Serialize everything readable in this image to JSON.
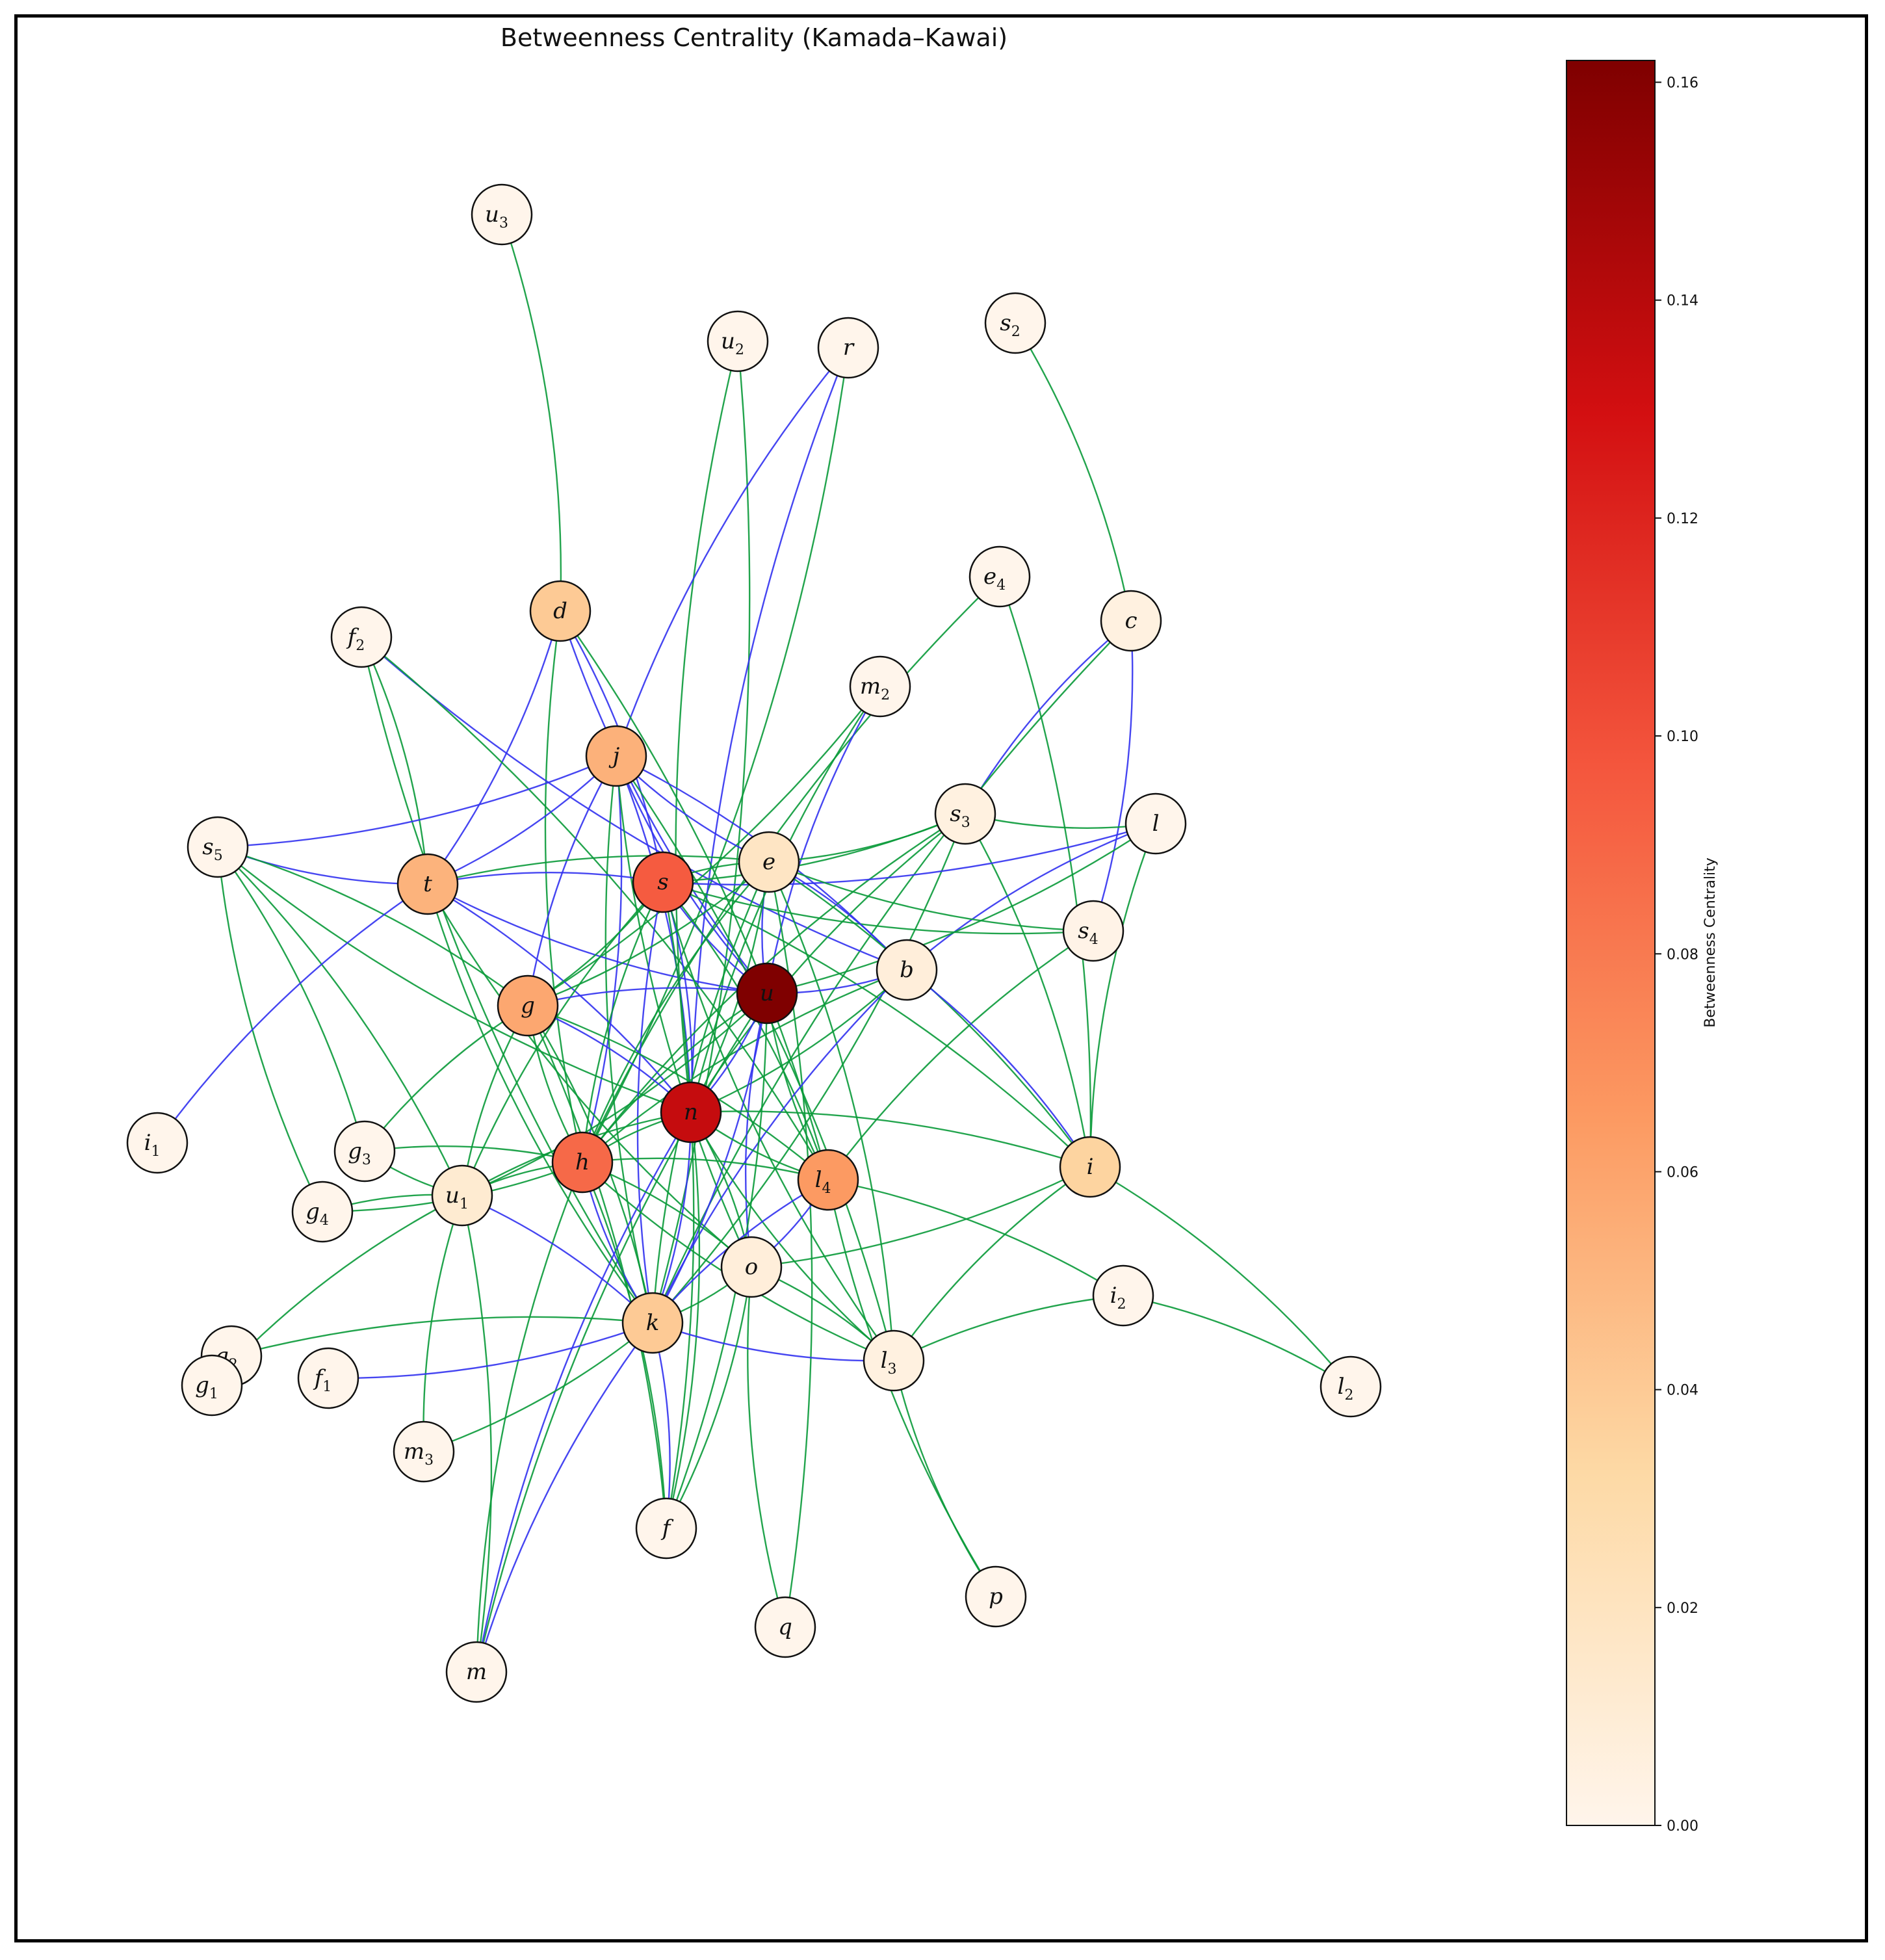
{
  "title": "Betweenness Centrality (Kamada–Kawai)",
  "colorbar": {
    "label": "Betweenness Centrality",
    "min": 0.0,
    "max": 0.162,
    "ticks": [
      {
        "value": 0.0,
        "label": "0.00"
      },
      {
        "value": 0.02,
        "label": "0.02"
      },
      {
        "value": 0.04,
        "label": "0.04"
      },
      {
        "value": 0.06,
        "label": "0.06"
      },
      {
        "value": 0.08,
        "label": "0.08"
      },
      {
        "value": 0.1,
        "label": "0.10"
      },
      {
        "value": 0.12,
        "label": "0.12"
      },
      {
        "value": 0.14,
        "label": "0.14"
      },
      {
        "value": 0.16,
        "label": "0.16"
      }
    ],
    "colormap": [
      "#fff5eb",
      "#fdd9a5",
      "#fc9a62",
      "#f4563d",
      "#d30f11",
      "#7f0000"
    ]
  },
  "edge_colors": {
    "green": "#0a9a3a",
    "blue": "#3232f0"
  },
  "nodes": [
    {
      "id": "u3",
      "base": "u",
      "sub": "3",
      "value": 0.0
    },
    {
      "id": "u2",
      "base": "u",
      "sub": "2",
      "value": 0.0
    },
    {
      "id": "r",
      "base": "r",
      "sub": "",
      "value": 0.0
    },
    {
      "id": "s2",
      "base": "s",
      "sub": "2",
      "value": 0.0
    },
    {
      "id": "e4",
      "base": "e",
      "sub": "4",
      "value": 0.0
    },
    {
      "id": "d",
      "base": "d",
      "sub": "",
      "value": 0.04
    },
    {
      "id": "c",
      "base": "c",
      "sub": "",
      "value": 0.005
    },
    {
      "id": "f2",
      "base": "f",
      "sub": "2",
      "value": 0.0
    },
    {
      "id": "m2",
      "base": "m",
      "sub": "2",
      "value": 0.0
    },
    {
      "id": "j",
      "base": "j",
      "sub": "",
      "value": 0.053
    },
    {
      "id": "s3",
      "base": "s",
      "sub": "3",
      "value": 0.005
    },
    {
      "id": "l",
      "base": "l",
      "sub": "",
      "value": 0.0
    },
    {
      "id": "s5",
      "base": "s",
      "sub": "5",
      "value": 0.0
    },
    {
      "id": "t",
      "base": "t",
      "sub": "",
      "value": 0.052
    },
    {
      "id": "s",
      "base": "s",
      "sub": "",
      "value": 0.095
    },
    {
      "id": "e",
      "base": "e",
      "sub": "",
      "value": 0.018
    },
    {
      "id": "s4",
      "base": "s",
      "sub": "4",
      "value": 0.002
    },
    {
      "id": "b",
      "base": "b",
      "sub": "",
      "value": 0.008
    },
    {
      "id": "u",
      "base": "u",
      "sub": "",
      "value": 0.162
    },
    {
      "id": "g",
      "base": "g",
      "sub": "",
      "value": 0.058
    },
    {
      "id": "n",
      "base": "n",
      "sub": "",
      "value": 0.135
    },
    {
      "id": "i1",
      "base": "i",
      "sub": "1",
      "value": 0.0
    },
    {
      "id": "g3",
      "base": "g",
      "sub": "3",
      "value": 0.0
    },
    {
      "id": "h",
      "base": "h",
      "sub": "",
      "value": 0.088
    },
    {
      "id": "l4",
      "base": "l",
      "sub": "4",
      "value": 0.065
    },
    {
      "id": "i",
      "base": "i",
      "sub": "",
      "value": 0.035
    },
    {
      "id": "u1",
      "base": "u",
      "sub": "1",
      "value": 0.012
    },
    {
      "id": "g4",
      "base": "g",
      "sub": "4",
      "value": 0.0
    },
    {
      "id": "o",
      "base": "o",
      "sub": "",
      "value": 0.008
    },
    {
      "id": "i2",
      "base": "i",
      "sub": "2",
      "value": 0.0
    },
    {
      "id": "k",
      "base": "k",
      "sub": "",
      "value": 0.04
    },
    {
      "id": "g2",
      "base": "g",
      "sub": "2",
      "value": 0.0
    },
    {
      "id": "g1",
      "base": "g",
      "sub": "1",
      "value": 0.0
    },
    {
      "id": "f1",
      "base": "f",
      "sub": "1",
      "value": 0.0
    },
    {
      "id": "l3",
      "base": "l",
      "sub": "3",
      "value": 0.005
    },
    {
      "id": "l2",
      "base": "l",
      "sub": "2",
      "value": 0.0
    },
    {
      "id": "m3",
      "base": "m",
      "sub": "3",
      "value": 0.0
    },
    {
      "id": "f",
      "base": "f",
      "sub": "",
      "value": 0.0
    },
    {
      "id": "p",
      "base": "p",
      "sub": "",
      "value": 0.0
    },
    {
      "id": "q",
      "base": "q",
      "sub": "",
      "value": 0.0
    },
    {
      "id": "m",
      "base": "m",
      "sub": "",
      "value": 0.0
    }
  ],
  "edges": [
    [
      "u3",
      "d",
      "green"
    ],
    [
      "u2",
      "n",
      "green"
    ],
    [
      "u2",
      "k",
      "green"
    ],
    [
      "r",
      "j",
      "blue"
    ],
    [
      "r",
      "h",
      "green"
    ],
    [
      "r",
      "n",
      "blue"
    ],
    [
      "s2",
      "c",
      "green"
    ],
    [
      "e4",
      "h",
      "green"
    ],
    [
      "e4",
      "i",
      "green"
    ],
    [
      "c",
      "s3",
      "blue"
    ],
    [
      "c",
      "s4",
      "blue"
    ],
    [
      "c",
      "k",
      "green"
    ],
    [
      "d",
      "t",
      "blue"
    ],
    [
      "d",
      "h",
      "green"
    ],
    [
      "d",
      "l4",
      "green"
    ],
    [
      "d",
      "u",
      "blue"
    ],
    [
      "d",
      "s",
      "blue"
    ],
    [
      "f2",
      "b",
      "blue"
    ],
    [
      "f2",
      "t",
      "green"
    ],
    [
      "f2",
      "k",
      "green"
    ],
    [
      "f2",
      "l4",
      "green"
    ],
    [
      "m2",
      "n",
      "green"
    ],
    [
      "m2",
      "g",
      "green"
    ],
    [
      "m2",
      "u",
      "blue"
    ],
    [
      "j",
      "t",
      "blue"
    ],
    [
      "j",
      "g",
      "blue"
    ],
    [
      "j",
      "h",
      "blue"
    ],
    [
      "j",
      "u",
      "blue"
    ],
    [
      "j",
      "n",
      "blue"
    ],
    [
      "j",
      "e",
      "blue"
    ],
    [
      "j",
      "b",
      "blue"
    ],
    [
      "j",
      "k",
      "green"
    ],
    [
      "j",
      "l3",
      "green"
    ],
    [
      "j",
      "o",
      "green"
    ],
    [
      "j",
      "s5",
      "blue"
    ],
    [
      "s3",
      "n",
      "green"
    ],
    [
      "s3",
      "i",
      "green"
    ],
    [
      "s3",
      "h",
      "green"
    ],
    [
      "s3",
      "s",
      "green"
    ],
    [
      "s3",
      "l",
      "green"
    ],
    [
      "s3",
      "k",
      "green"
    ],
    [
      "l",
      "b",
      "blue"
    ],
    [
      "l",
      "s",
      "blue"
    ],
    [
      "l",
      "i",
      "green"
    ],
    [
      "l",
      "u",
      "green"
    ],
    [
      "s5",
      "t",
      "blue"
    ],
    [
      "s5",
      "g",
      "green"
    ],
    [
      "s5",
      "n",
      "green"
    ],
    [
      "s5",
      "g3",
      "green"
    ],
    [
      "s5",
      "g4",
      "green"
    ],
    [
      "s5",
      "u1",
      "green"
    ],
    [
      "t",
      "i1",
      "blue"
    ],
    [
      "t",
      "s",
      "blue"
    ],
    [
      "t",
      "u",
      "blue"
    ],
    [
      "t",
      "e",
      "green"
    ],
    [
      "t",
      "k",
      "green"
    ],
    [
      "t",
      "n",
      "blue"
    ],
    [
      "t",
      "o",
      "green"
    ],
    [
      "s",
      "e",
      "green"
    ],
    [
      "s",
      "u",
      "blue"
    ],
    [
      "s",
      "g",
      "green"
    ],
    [
      "s",
      "h",
      "green"
    ],
    [
      "s",
      "n",
      "blue"
    ],
    [
      "s",
      "k",
      "blue"
    ],
    [
      "s",
      "l4",
      "green"
    ],
    [
      "s",
      "u1",
      "green"
    ],
    [
      "s",
      "f",
      "green"
    ],
    [
      "s",
      "l3",
      "green"
    ],
    [
      "s",
      "i",
      "green"
    ],
    [
      "s",
      "s4",
      "green"
    ],
    [
      "e",
      "b",
      "blue"
    ],
    [
      "e",
      "u",
      "blue"
    ],
    [
      "e",
      "g",
      "green"
    ],
    [
      "e",
      "h",
      "green"
    ],
    [
      "e",
      "n",
      "green"
    ],
    [
      "e",
      "k",
      "green"
    ],
    [
      "e",
      "l3",
      "green"
    ],
    [
      "e",
      "s4",
      "green"
    ],
    [
      "e",
      "i",
      "green"
    ],
    [
      "e",
      "s3",
      "green"
    ],
    [
      "e",
      "q",
      "green"
    ],
    [
      "s4",
      "l4",
      "green"
    ],
    [
      "b",
      "u",
      "blue"
    ],
    [
      "b",
      "k",
      "blue"
    ],
    [
      "b",
      "i",
      "blue"
    ],
    [
      "b",
      "h",
      "green"
    ],
    [
      "b",
      "n",
      "green"
    ],
    [
      "u",
      "g",
      "blue"
    ],
    [
      "u",
      "n",
      "blue"
    ],
    [
      "u",
      "h",
      "green"
    ],
    [
      "u",
      "k",
      "blue"
    ],
    [
      "u",
      "o",
      "blue"
    ],
    [
      "u",
      "f",
      "green"
    ],
    [
      "u",
      "l4",
      "green"
    ],
    [
      "u",
      "u1",
      "green"
    ],
    [
      "u",
      "m",
      "green"
    ],
    [
      "g",
      "n",
      "blue"
    ],
    [
      "g",
      "h",
      "green"
    ],
    [
      "g",
      "k",
      "green"
    ],
    [
      "g",
      "g3",
      "green"
    ],
    [
      "g",
      "l4",
      "green"
    ],
    [
      "g",
      "u1",
      "green"
    ],
    [
      "g",
      "f",
      "green"
    ],
    [
      "n",
      "h",
      "green"
    ],
    [
      "n",
      "k",
      "blue"
    ],
    [
      "n",
      "l4",
      "green"
    ],
    [
      "n",
      "o",
      "green"
    ],
    [
      "n",
      "l3",
      "green"
    ],
    [
      "n",
      "i",
      "green"
    ],
    [
      "n",
      "u1",
      "green"
    ],
    [
      "n",
      "f",
      "green"
    ],
    [
      "n",
      "m",
      "blue"
    ],
    [
      "g3",
      "h",
      "green"
    ],
    [
      "g3",
      "u1",
      "green"
    ],
    [
      "h",
      "l4",
      "green"
    ],
    [
      "h",
      "k",
      "blue"
    ],
    [
      "h",
      "o",
      "green"
    ],
    [
      "h",
      "u1",
      "green"
    ],
    [
      "h",
      "f",
      "green"
    ],
    [
      "h",
      "m",
      "green"
    ],
    [
      "h",
      "g4",
      "green"
    ],
    [
      "h",
      "l3",
      "green"
    ],
    [
      "l4",
      "o",
      "blue"
    ],
    [
      "l4",
      "k",
      "blue"
    ],
    [
      "l4",
      "i2",
      "green"
    ],
    [
      "l4",
      "p",
      "green"
    ],
    [
      "i",
      "o",
      "green"
    ],
    [
      "i",
      "l3",
      "green"
    ],
    [
      "i",
      "l2",
      "green"
    ],
    [
      "u1",
      "g4",
      "green"
    ],
    [
      "u1",
      "k",
      "blue"
    ],
    [
      "u1",
      "m3",
      "green"
    ],
    [
      "u1",
      "m",
      "green"
    ],
    [
      "u1",
      "g1",
      "green"
    ],
    [
      "o",
      "k",
      "green"
    ],
    [
      "o",
      "q",
      "green"
    ],
    [
      "o",
      "l3",
      "green"
    ],
    [
      "i2",
      "l3",
      "green"
    ],
    [
      "i2",
      "l2",
      "green"
    ],
    [
      "k",
      "l3",
      "blue"
    ],
    [
      "k",
      "f",
      "blue"
    ],
    [
      "k",
      "m",
      "blue"
    ],
    [
      "k",
      "m3",
      "green"
    ],
    [
      "k",
      "g2",
      "green"
    ],
    [
      "k",
      "f1",
      "blue"
    ],
    [
      "l3",
      "p",
      "green"
    ],
    [
      "o",
      "f",
      "green"
    ]
  ]
}
